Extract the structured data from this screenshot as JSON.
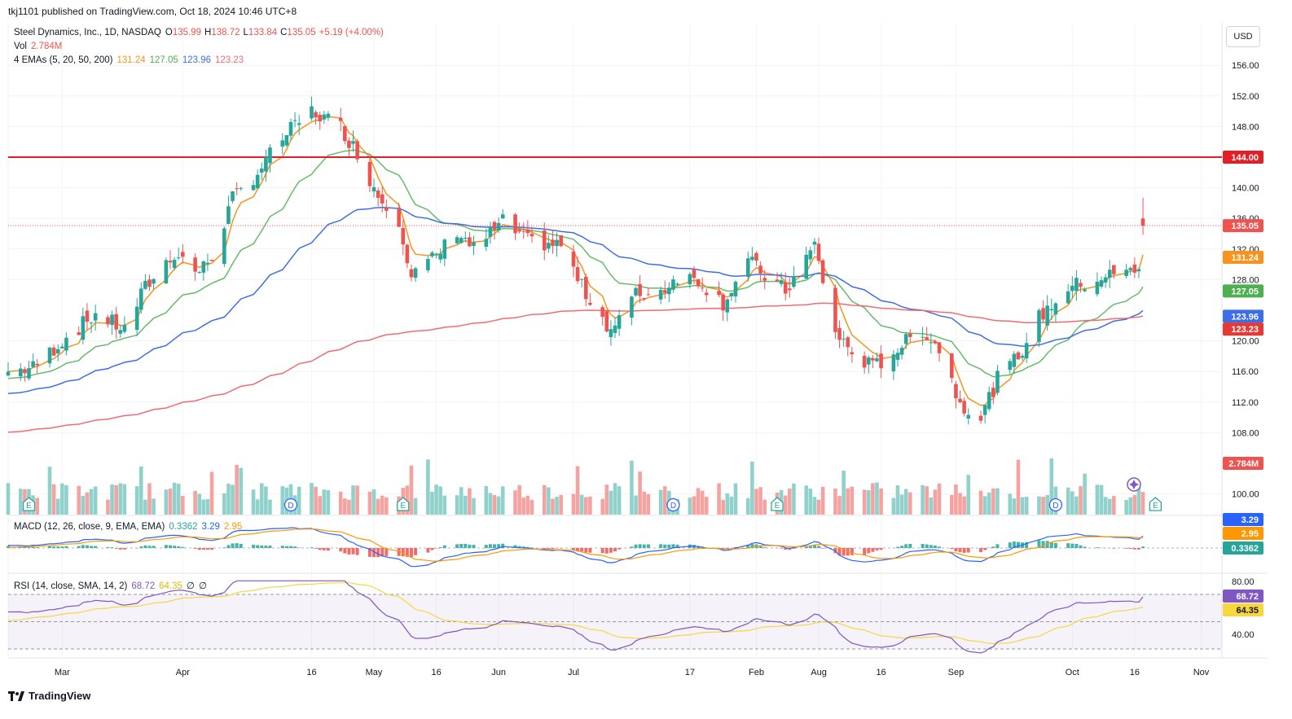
{
  "header": {
    "publisher": "tkj1101 published on TradingView.com, Oct 18, 2024 10:46 UTC+8"
  },
  "legend": {
    "symbol": "Steel Dynamics, Inc., 1D, NASDAQ",
    "o_label": "O",
    "o": "135.99",
    "h_label": "H",
    "h": "138.72",
    "l_label": "L",
    "l": "133.84",
    "c_label": "C",
    "c": "135.05",
    "change": "+5.19 (+4.00%)",
    "vol_label": "Vol",
    "vol": "2.784M",
    "ema_label": "4 EMAs (5, 20, 50, 200)",
    "ema5": "131.24",
    "ema20": "127.05",
    "ema50": "123.96",
    "ema200": "123.23",
    "macd_label": "MACD (12, 26, close, 9, EMA, EMA)",
    "macd_hist": "0.3362",
    "macd_line": "3.29",
    "macd_signal": "2.95",
    "rsi_label": "RSI (14, close, SMA, 14, 2)",
    "rsi": "68.72",
    "rsi_ma": "64.35",
    "rsi_x1": "∅",
    "rsi_x2": "∅"
  },
  "currency_button": "USD",
  "footer": {
    "brand": "TradingView"
  },
  "colors": {
    "up": "#26a69a",
    "down": "#ef5350",
    "ema5": "#f7941d",
    "ema20": "#66bb6a",
    "ema50": "#3e6ee7",
    "ema200": "#f06c72",
    "resistance": "#e41e26",
    "macd": "#2962ff",
    "signal": "#ff9800",
    "rsi": "#7e57c2",
    "rsi_ma": "#f8d63e"
  },
  "chart_data": {
    "type": "candlestick",
    "x_tick_labels": [
      "Feb",
      "Mar",
      "Apr",
      "16",
      "May",
      "16",
      "Jun",
      "Jul",
      "17",
      "Aug",
      "16",
      "Sep",
      "Oct",
      "16",
      "Nov"
    ],
    "y_tick_labels": [
      "156.00",
      "152.00",
      "148.00",
      "140.00",
      "136.00",
      "132.00",
      "128.00",
      "120.00",
      "116.00",
      "112.00",
      "108.00",
      "100.00"
    ],
    "resistance_level": 144.0,
    "price_badges": {
      "resistance": "144.00",
      "close": "135.05",
      "ema5": "131.24",
      "ema20": "127.05",
      "ema50": "123.96",
      "ema200": "123.23",
      "volume": "2.784M"
    },
    "price_points": [
      [
        "2024-01-19",
        116.0
      ],
      [
        "2024-01-25",
        116.5
      ],
      [
        "2024-02-01",
        120.0
      ],
      [
        "2024-02-09",
        123.5
      ],
      [
        "2024-02-16",
        121.5
      ],
      [
        "2024-02-21",
        127.0
      ],
      [
        "2024-02-28",
        131.5
      ],
      [
        "2024-03-05",
        129.0
      ],
      [
        "2024-03-08",
        131.0
      ],
      [
        "2024-03-13",
        138.5
      ],
      [
        "2024-03-19",
        142.0
      ],
      [
        "2024-03-25",
        146.5
      ],
      [
        "2024-04-01",
        150.0
      ],
      [
        "2024-04-08",
        148.0
      ],
      [
        "2024-04-12",
        144.5
      ],
      [
        "2024-04-17",
        139.0
      ],
      [
        "2024-04-22",
        136.0
      ],
      [
        "2024-04-25",
        128.5
      ],
      [
        "2024-05-01",
        131.0
      ],
      [
        "2024-05-06",
        134.5
      ],
      [
        "2024-05-10",
        132.0
      ],
      [
        "2024-05-17",
        135.5
      ],
      [
        "2024-05-23",
        133.0
      ],
      [
        "2024-05-31",
        132.5
      ],
      [
        "2024-06-05",
        127.0
      ],
      [
        "2024-06-12",
        121.5
      ],
      [
        "2024-06-18",
        126.0
      ],
      [
        "2024-06-24",
        126.5
      ],
      [
        "2024-06-28",
        128.5
      ],
      [
        "2024-07-03",
        128.0
      ],
      [
        "2024-07-09",
        125.0
      ],
      [
        "2024-07-15",
        130.5
      ],
      [
        "2024-07-19",
        128.5
      ],
      [
        "2024-07-24",
        126.5
      ],
      [
        "2024-07-31",
        132.5
      ],
      [
        "2024-08-05",
        121.0
      ],
      [
        "2024-08-09",
        118.5
      ],
      [
        "2024-08-14",
        116.5
      ],
      [
        "2024-08-20",
        119.0
      ],
      [
        "2024-08-26",
        121.5
      ],
      [
        "2024-08-30",
        119.0
      ],
      [
        "2024-09-04",
        112.0
      ],
      [
        "2024-09-09",
        110.0
      ],
      [
        "2024-09-13",
        115.0
      ],
      [
        "2024-09-18",
        118.0
      ],
      [
        "2024-09-23",
        123.0
      ],
      [
        "2024-09-30",
        127.0
      ],
      [
        "2024-10-04",
        127.5
      ],
      [
        "2024-10-09",
        128.5
      ],
      [
        "2024-10-15",
        129.0
      ],
      [
        "2024-10-17",
        129.9
      ],
      [
        "2024-10-18",
        135.05
      ]
    ],
    "ema_values_last": {
      "ema5": 131.24,
      "ema20": 127.05,
      "ema50": 123.96,
      "ema200": 123.23
    },
    "volume_last": "2.784M",
    "macd": {
      "hist_last": 0.3362,
      "macd_last": 3.29,
      "signal_last": 2.95,
      "axis_badges": [
        "3.29",
        "2.95",
        "0.3362"
      ]
    },
    "rsi": {
      "last": 68.72,
      "ma_last": 64.35,
      "axis_ticks": [
        "80.00",
        "40.00"
      ],
      "bands": [
        70,
        30
      ]
    },
    "event_markers": [
      {
        "date": "2024-01-24",
        "label": "E"
      },
      {
        "date": "2024-03-27",
        "label": "D"
      },
      {
        "date": "2024-04-23",
        "label": "E"
      },
      {
        "date": "2024-06-27",
        "label": "D"
      },
      {
        "date": "2024-07-22",
        "label": "E"
      },
      {
        "date": "2024-09-27",
        "label": "D"
      },
      {
        "date": "2024-10-21",
        "label": "E"
      }
    ]
  }
}
